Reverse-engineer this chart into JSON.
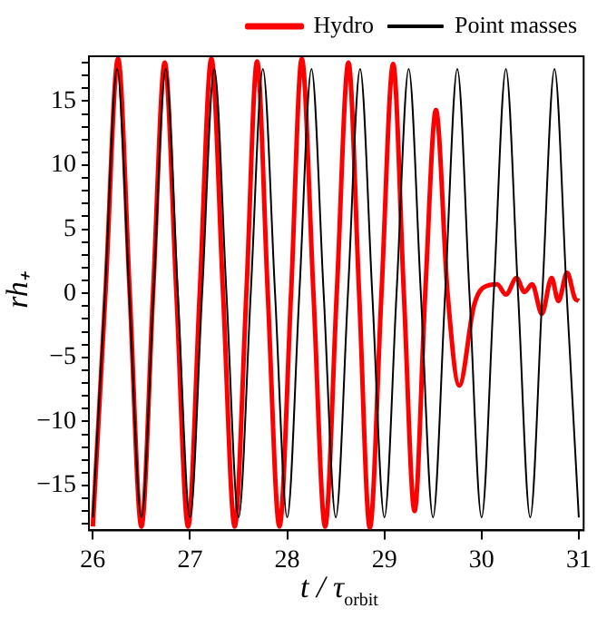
{
  "chart_data": {
    "type": "line",
    "xlabel": "t / τ$_{orbit}$",
    "ylabel": "rh₊",
    "xlim": [
      25.96,
      31.05
    ],
    "ylim": [
      -18.5,
      18.5
    ],
    "xticks": [
      26,
      27,
      28,
      29,
      30,
      31
    ],
    "yticks": [
      {
        "value": -15,
        "label": "−15"
      },
      {
        "value": -10,
        "label": "−10"
      },
      {
        "value": -5,
        "label": "−5"
      },
      0,
      5,
      10,
      15,
      {
        "value": -18,
        "label": null
      },
      {
        "value": -17,
        "label": null
      },
      {
        "value": -16,
        "label": null
      },
      {
        "value": -14,
        "label": null
      },
      {
        "value": -13,
        "label": null
      },
      {
        "value": -12,
        "label": null
      },
      {
        "value": -11,
        "label": null
      },
      {
        "value": -9,
        "label": null
      },
      {
        "value": -8,
        "label": null
      },
      {
        "value": -7,
        "label": null
      },
      {
        "value": -6,
        "label": null
      },
      {
        "value": -4,
        "label": null
      },
      {
        "value": -3,
        "label": null
      },
      {
        "value": -2,
        "label": null
      },
      {
        "value": -1,
        "label": null
      },
      {
        "value": 1,
        "label": null
      },
      {
        "value": 2,
        "label": null
      },
      {
        "value": 3,
        "label": null
      },
      {
        "value": 4,
        "label": null
      },
      {
        "value": 6,
        "label": null
      },
      {
        "value": 7,
        "label": null
      },
      {
        "value": 8,
        "label": null
      },
      {
        "value": 9,
        "label": null
      },
      {
        "value": 11,
        "label": null
      },
      {
        "value": 12,
        "label": null
      },
      {
        "value": 13,
        "label": null
      },
      {
        "value": 14,
        "label": null
      },
      {
        "value": 16,
        "label": null
      },
      {
        "value": 17,
        "label": null
      },
      {
        "value": 18,
        "label": null
      }
    ],
    "grid": false,
    "legend": "top right",
    "marker": "none",
    "line_style": "solid",
    "series": [
      {
        "name": "Hydro",
        "color": "#ff0000",
        "x": [
          26.0,
          26.13,
          26.26,
          26.38,
          26.5,
          26.62,
          26.74,
          26.86,
          26.98,
          27.1,
          27.22,
          27.34,
          27.46,
          27.58,
          27.69,
          27.8,
          27.92,
          28.04,
          28.15,
          28.27,
          28.39,
          28.51,
          28.63,
          28.74,
          28.85,
          28.97,
          29.09,
          29.2,
          29.31,
          29.42,
          29.53,
          29.65,
          29.77,
          29.92,
          30.01,
          30.16,
          30.25,
          30.36,
          30.44,
          30.52,
          30.62,
          30.72,
          30.79,
          30.88,
          30.96,
          31.0
        ],
        "values": [
          -18.2,
          0,
          18.3,
          0,
          -18.2,
          0,
          18.0,
          0,
          -18.2,
          0,
          18.3,
          0,
          -18.2,
          0,
          18.1,
          0,
          -18.2,
          0,
          18.3,
          0,
          -18.2,
          0,
          18.0,
          0,
          -18.3,
          0,
          17.9,
          0,
          -17.0,
          0,
          14.3,
          0,
          -7.2,
          -1.0,
          0.4,
          0.7,
          -0.1,
          1.2,
          0.1,
          0.7,
          -1.6,
          1.2,
          -0.6,
          1.6,
          -0.4,
          -0.6
        ]
      },
      {
        "name": "Point masses",
        "color": "#000000",
        "x": [
          26.0,
          26.125,
          26.25,
          26.375,
          26.5,
          26.625,
          26.75,
          26.875,
          27.0,
          27.125,
          27.25,
          27.375,
          27.5,
          27.625,
          27.75,
          27.875,
          28.0,
          28.125,
          28.25,
          28.375,
          28.5,
          28.625,
          28.75,
          28.875,
          29.0,
          29.125,
          29.25,
          29.375,
          29.5,
          29.625,
          29.75,
          29.875,
          30.0,
          30.125,
          30.25,
          30.375,
          30.5,
          30.625,
          30.75,
          30.875,
          31.0
        ],
        "values": [
          -17.5,
          0,
          17.5,
          0,
          -17.5,
          0,
          17.5,
          0,
          -17.5,
          0,
          17.5,
          0,
          -17.5,
          0,
          17.5,
          0,
          -17.5,
          0,
          17.5,
          0,
          -17.5,
          0,
          17.5,
          0,
          -17.5,
          0,
          17.5,
          0,
          -17.5,
          0,
          17.5,
          0,
          -17.5,
          0,
          17.5,
          0,
          -17.5,
          0,
          17.5,
          0,
          -17.5
        ]
      }
    ]
  }
}
